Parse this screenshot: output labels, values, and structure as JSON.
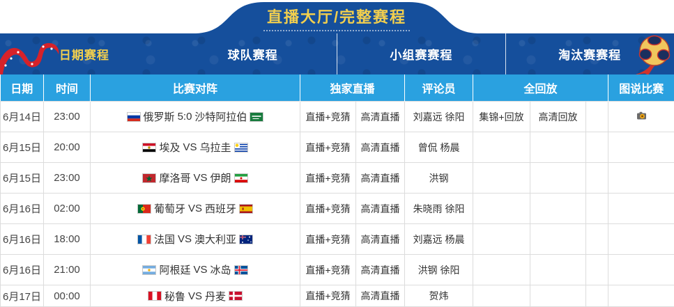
{
  "header": {
    "title": "直播大厅/完整赛程"
  },
  "tabs": [
    {
      "key": "date-schedule",
      "label": "日期赛程",
      "active": true
    },
    {
      "key": "team-schedule",
      "label": "球队赛程",
      "active": false
    },
    {
      "key": "group-stage-schedule",
      "label": "小组赛赛程",
      "active": false
    },
    {
      "key": "knockout-schedule",
      "label": "淘汰赛赛程",
      "active": false
    }
  ],
  "icons": {
    "ribbon": "red-ribbon-icon",
    "ball": "worldcup-ball-icon",
    "photo": "camera-icon"
  },
  "table": {
    "columns": {
      "date": "日期",
      "time": "时间",
      "match": "比赛对阵",
      "exclusive_live": "独家直播",
      "commentator": "评论员",
      "full_replay": "全回放",
      "match_pictures": "图说比赛"
    },
    "rows": [
      {
        "date": "6月14日",
        "time": "23:00",
        "home": "俄罗斯",
        "home_flag": "russia",
        "result": "5:0",
        "away": "沙特阿拉伯",
        "away_flag": "saudi-arabia",
        "live": "直播+竞猜",
        "hd_live": "高清直播",
        "commentators": "刘嘉远 徐阳",
        "replay_highlights": "集锦+回放",
        "replay_hd": "高清回放",
        "has_photo_icon": true
      },
      {
        "date": "6月15日",
        "time": "20:00",
        "home": "埃及",
        "home_flag": "egypt",
        "result": "VS",
        "away": "乌拉圭",
        "away_flag": "uruguay",
        "live": "直播+竞猜",
        "hd_live": "高清直播",
        "commentators": "曾侃 杨晨",
        "replay_highlights": "",
        "replay_hd": "",
        "has_photo_icon": false
      },
      {
        "date": "6月15日",
        "time": "23:00",
        "home": "摩洛哥",
        "home_flag": "morocco",
        "result": "VS",
        "away": "伊朗",
        "away_flag": "iran",
        "live": "直播+竞猜",
        "hd_live": "高清直播",
        "commentators": "洪钢",
        "replay_highlights": "",
        "replay_hd": "",
        "has_photo_icon": false
      },
      {
        "date": "6月16日",
        "time": "02:00",
        "home": "葡萄牙",
        "home_flag": "portugal",
        "result": "VS",
        "away": "西班牙",
        "away_flag": "spain",
        "live": "直播+竞猜",
        "hd_live": "高清直播",
        "commentators": "朱晓雨 徐阳",
        "replay_highlights": "",
        "replay_hd": "",
        "has_photo_icon": false
      },
      {
        "date": "6月16日",
        "time": "18:00",
        "home": "法国",
        "home_flag": "france",
        "result": "VS",
        "away": "澳大利亚",
        "away_flag": "australia",
        "live": "直播+竞猜",
        "hd_live": "高清直播",
        "commentators": "刘嘉远 杨晨",
        "replay_highlights": "",
        "replay_hd": "",
        "has_photo_icon": false
      },
      {
        "date": "6月16日",
        "time": "21:00",
        "home": "阿根廷",
        "home_flag": "argentina",
        "result": "VS",
        "away": "冰岛",
        "away_flag": "iceland",
        "live": "直播+竞猜",
        "hd_live": "高清直播",
        "commentators": "洪钢 徐阳",
        "replay_highlights": "",
        "replay_hd": "",
        "has_photo_icon": false
      },
      {
        "date": "6月17日",
        "time": "00:00",
        "home": "秘鲁",
        "home_flag": "peru",
        "result": "VS",
        "away": "丹麦",
        "away_flag": "denmark",
        "live": "直播+竞猜",
        "hd_live": "高清直播",
        "commentators": "贺炜",
        "replay_highlights": "",
        "replay_hd": "",
        "has_photo_icon": false
      }
    ]
  },
  "colors": {
    "nav_blue": "#154f9c",
    "table_header_blue": "#2aa1e0",
    "accent_gold": "#f2cf4e",
    "ribbon_red": "#d6222a",
    "border_gray": "#dcdcdc"
  }
}
